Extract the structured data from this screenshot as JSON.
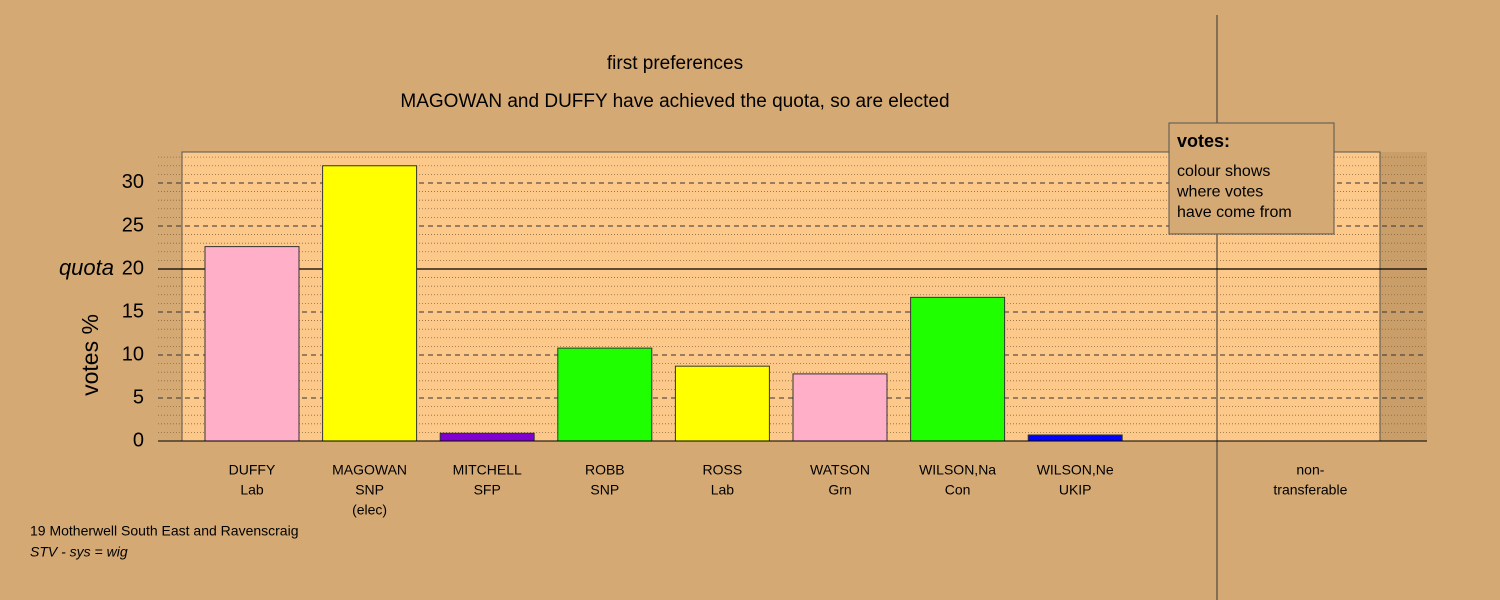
{
  "chart_data": {
    "type": "bar",
    "title": "first preferences",
    "subtitle": "MAGOWAN and DUFFY have achieved the quota, so are elected",
    "y_label": "votes %",
    "categories": [
      [
        "DUFFY",
        "Lab"
      ],
      [
        "MAGOWAN",
        "SNP",
        "(elec)"
      ],
      [
        "MITCHELL",
        "SFP"
      ],
      [
        "ROBB",
        "SNP"
      ],
      [
        "ROSS",
        "Lab"
      ],
      [
        "WATSON",
        "Grn"
      ],
      [
        "WILSON,Na",
        "Con"
      ],
      [
        "WILSON,Ne",
        "UKIP"
      ],
      [
        "non-",
        "transferable"
      ]
    ],
    "values": [
      22.6,
      32,
      0.9,
      10.8,
      8.7,
      7.8,
      16.7,
      0.7,
      0
    ],
    "colors": [
      "#ffb0c8",
      "#ffff00",
      "#8000d0",
      "#20ff00",
      "#ffff00",
      "#ffb0c8",
      "#20ff00",
      "#0000ff",
      "#8000d0"
    ],
    "ylim": [
      0,
      33.6
    ],
    "yticks": [
      0,
      5,
      10,
      15,
      20,
      25,
      30
    ],
    "minor_yticks": [
      1,
      2,
      3,
      4,
      6,
      7,
      8,
      9,
      11,
      12,
      13,
      14,
      16,
      17,
      18,
      19,
      21,
      22,
      23,
      24,
      26,
      27,
      28,
      29,
      31,
      32,
      33
    ],
    "quota": 20,
    "quota_label": "quota",
    "legend": {
      "title": "votes:",
      "lines": [
        "colour shows",
        "where votes",
        "have come from"
      ]
    },
    "footer": [
      "19 Motherwell South East and Ravenscraig",
      "STV - sys = wig"
    ]
  }
}
